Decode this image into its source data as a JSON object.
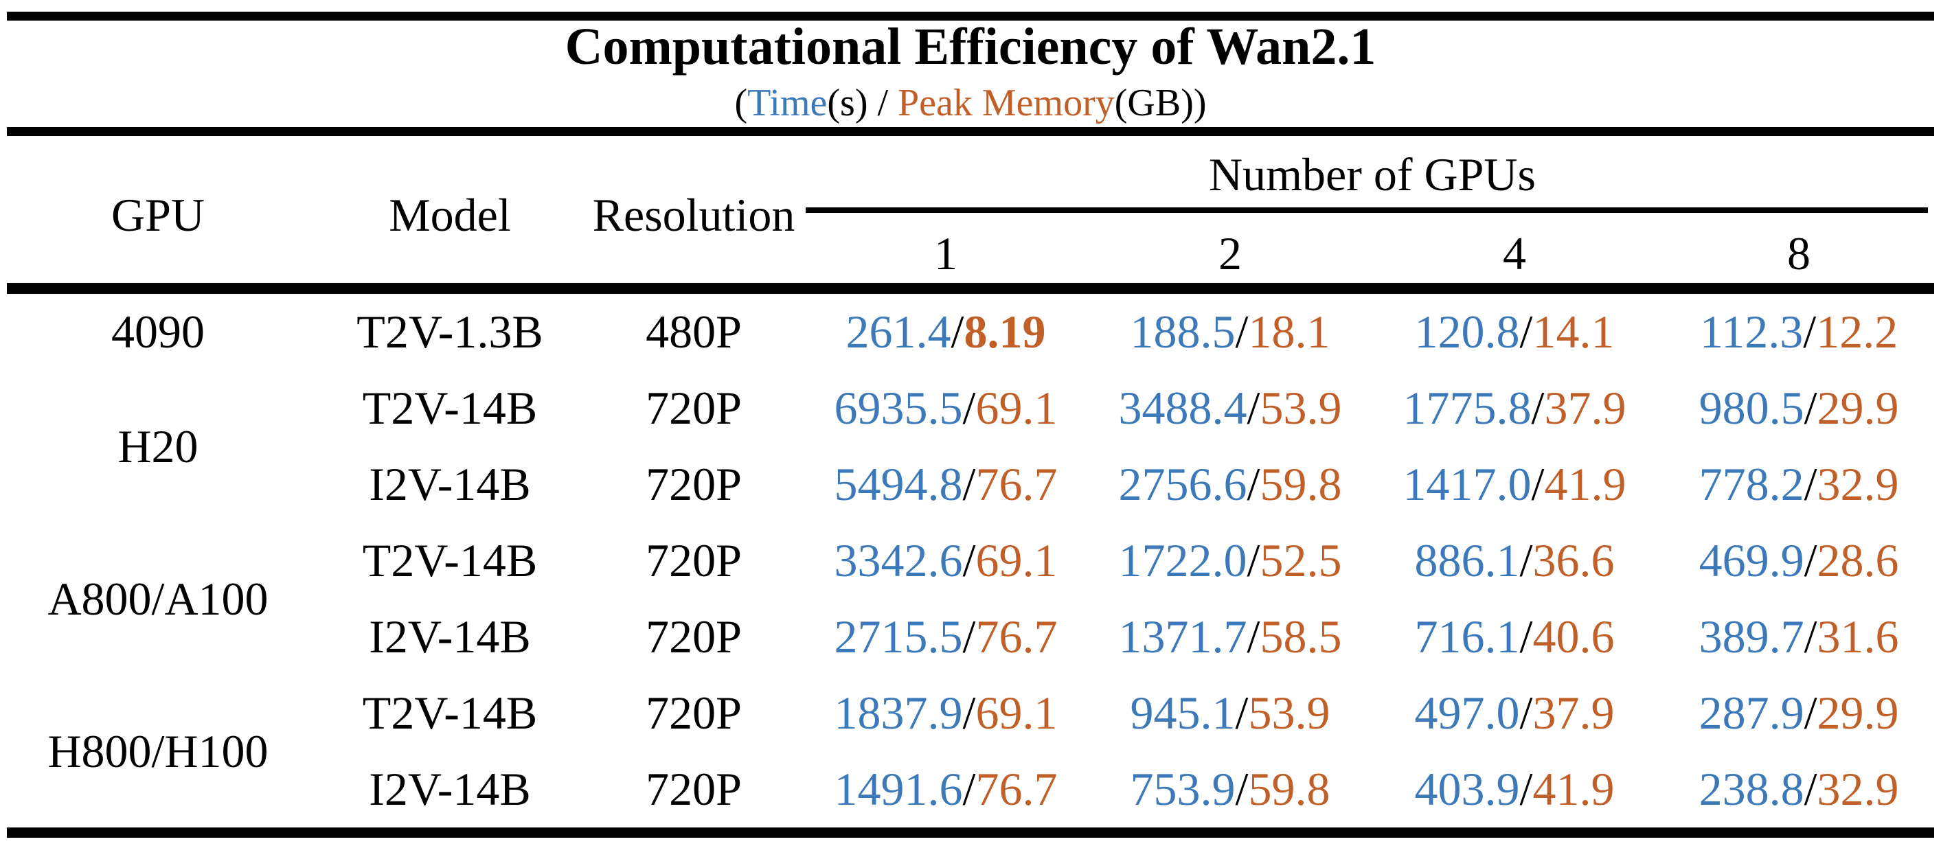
{
  "title": "Computational Efficiency of Wan2.1",
  "subtitle": {
    "open_paren": "(",
    "time_label": "Time",
    "time_unit": "(s)",
    "separator": " / ",
    "memory_label": "Peak Memory",
    "memory_unit": "(GB)",
    "close_paren": ")"
  },
  "colors": {
    "time": "#3C79B8",
    "memory": "#C05F28",
    "text": "#000000",
    "background": "#ffffff"
  },
  "table": {
    "value_separator": "/",
    "columns": {
      "gpu": "GPU",
      "model": "Model",
      "resolution": "Resolution",
      "gpu_count_group": "Number of GPUs",
      "gpu_counts": [
        "1",
        "2",
        "4",
        "8"
      ]
    },
    "rows": [
      {
        "gpu": "4090",
        "gpu_rowspan": 1,
        "model": "T2V-1.3B",
        "resolution": "480P",
        "cells": [
          {
            "time": "261.4",
            "memory": "8.19",
            "memory_bold": true
          },
          {
            "time": "188.5",
            "memory": "18.1"
          },
          {
            "time": "120.8",
            "memory": "14.1"
          },
          {
            "time": "112.3",
            "memory": "12.2"
          }
        ]
      },
      {
        "gpu": "H20",
        "gpu_rowspan": 2,
        "model": "T2V-14B",
        "resolution": "720P",
        "cells": [
          {
            "time": "6935.5",
            "memory": "69.1"
          },
          {
            "time": "3488.4",
            "memory": "53.9"
          },
          {
            "time": "1775.8",
            "memory": "37.9"
          },
          {
            "time": "980.5",
            "memory": "29.9"
          }
        ]
      },
      {
        "model": "I2V-14B",
        "resolution": "720P",
        "cells": [
          {
            "time": "5494.8",
            "memory": "76.7"
          },
          {
            "time": "2756.6",
            "memory": "59.8"
          },
          {
            "time": "1417.0",
            "memory": "41.9"
          },
          {
            "time": "778.2",
            "memory": "32.9"
          }
        ]
      },
      {
        "gpu": "A800/A100",
        "gpu_rowspan": 2,
        "model": "T2V-14B",
        "resolution": "720P",
        "cells": [
          {
            "time": "3342.6",
            "memory": "69.1"
          },
          {
            "time": "1722.0",
            "memory": "52.5"
          },
          {
            "time": "886.1",
            "memory": "36.6"
          },
          {
            "time": "469.9",
            "memory": "28.6"
          }
        ]
      },
      {
        "model": "I2V-14B",
        "resolution": "720P",
        "cells": [
          {
            "time": "2715.5",
            "memory": "76.7"
          },
          {
            "time": "1371.7",
            "memory": "58.5"
          },
          {
            "time": "716.1",
            "memory": "40.6"
          },
          {
            "time": "389.7",
            "memory": "31.6"
          }
        ]
      },
      {
        "gpu": "H800/H100",
        "gpu_rowspan": 2,
        "model": "T2V-14B",
        "resolution": "720P",
        "cells": [
          {
            "time": "1837.9",
            "memory": "69.1"
          },
          {
            "time": "945.1",
            "memory": "53.9"
          },
          {
            "time": "497.0",
            "memory": "37.9"
          },
          {
            "time": "287.9",
            "memory": "29.9"
          }
        ]
      },
      {
        "model": "I2V-14B",
        "resolution": "720P",
        "cells": [
          {
            "time": "1491.6",
            "memory": "76.7"
          },
          {
            "time": "753.9",
            "memory": "59.8"
          },
          {
            "time": "403.9",
            "memory": "41.9"
          },
          {
            "time": "238.8",
            "memory": "32.9"
          }
        ]
      }
    ]
  }
}
